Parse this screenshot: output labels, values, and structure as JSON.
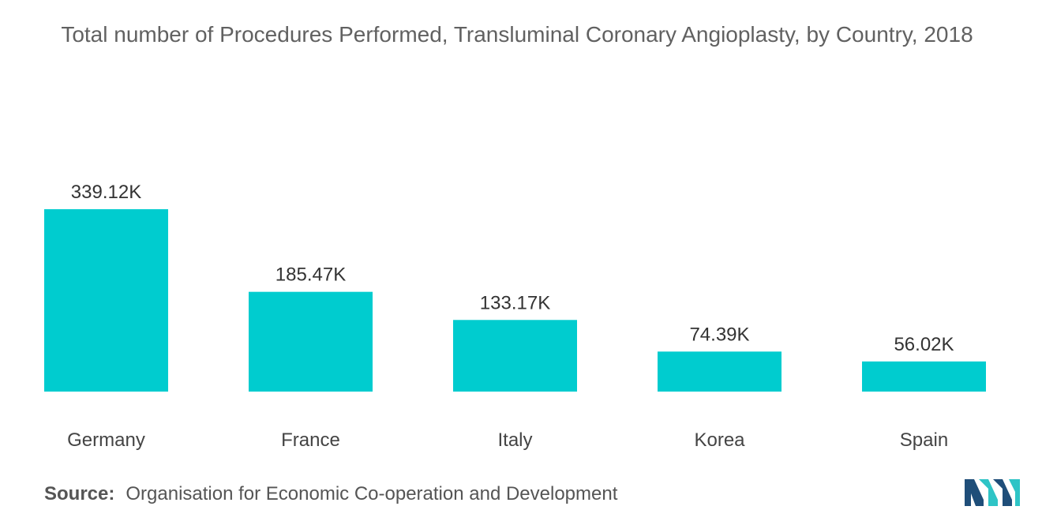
{
  "title": "Total number of Procedures Performed, Transluminal Coronary Angioplasty, by Country, 2018",
  "source": {
    "label": "Source:",
    "text": "Organisation for Economic Co-operation and Development"
  },
  "logo": {
    "icon": "mordor-intelligence-logo-icon"
  },
  "colors": {
    "bar": "#00CCCF",
    "logo_dark": "#1F4E79",
    "logo_light": "#2EC4C6"
  },
  "chart_data": {
    "type": "bar",
    "title": "Total number of Procedures Performed, Transluminal Coronary Angioplasty, by Country, 2018",
    "categories": [
      "Germany",
      "France",
      "Italy",
      "Korea",
      "Spain"
    ],
    "values": [
      339.12,
      185.47,
      133.17,
      74.39,
      56.02
    ],
    "value_labels": [
      "339.12K",
      "185.47K",
      "133.17K",
      "74.39K",
      "56.02K"
    ],
    "unit": "K",
    "xlabel": "",
    "ylabel": "",
    "ylim": [
      0,
      339.12
    ],
    "grid": false,
    "legend": "none"
  }
}
